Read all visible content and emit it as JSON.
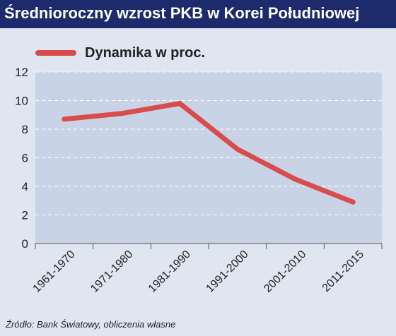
{
  "header": {
    "title": "Średnioroczny wzrost PKB w Korei Południowej"
  },
  "footer": {
    "source": "Źródło: Bank Światowy, obliczenia własne"
  },
  "colors": {
    "title_bar": "#1d2a6b",
    "line": "#d84c4c",
    "plot_background": "#c9d3e6",
    "page_background": "#dfe6f2"
  },
  "chart_data": {
    "type": "line",
    "title": "Średnioroczny wzrost PKB w Korei Południowej",
    "xlabel": "",
    "ylabel": "",
    "categories": [
      "1961-1970",
      "1971-1980",
      "1981-1990",
      "1991-2000",
      "2001-2010",
      "2011-2015"
    ],
    "series": [
      {
        "name": "Dynamika w proc.",
        "values": [
          8.7,
          9.1,
          9.8,
          6.6,
          4.5,
          2.9
        ]
      }
    ],
    "ylim": [
      0,
      12
    ],
    "yticks": [
      "0",
      "2",
      "4",
      "6",
      "8",
      "10",
      "12"
    ],
    "grid": true,
    "legend": "top-left"
  }
}
